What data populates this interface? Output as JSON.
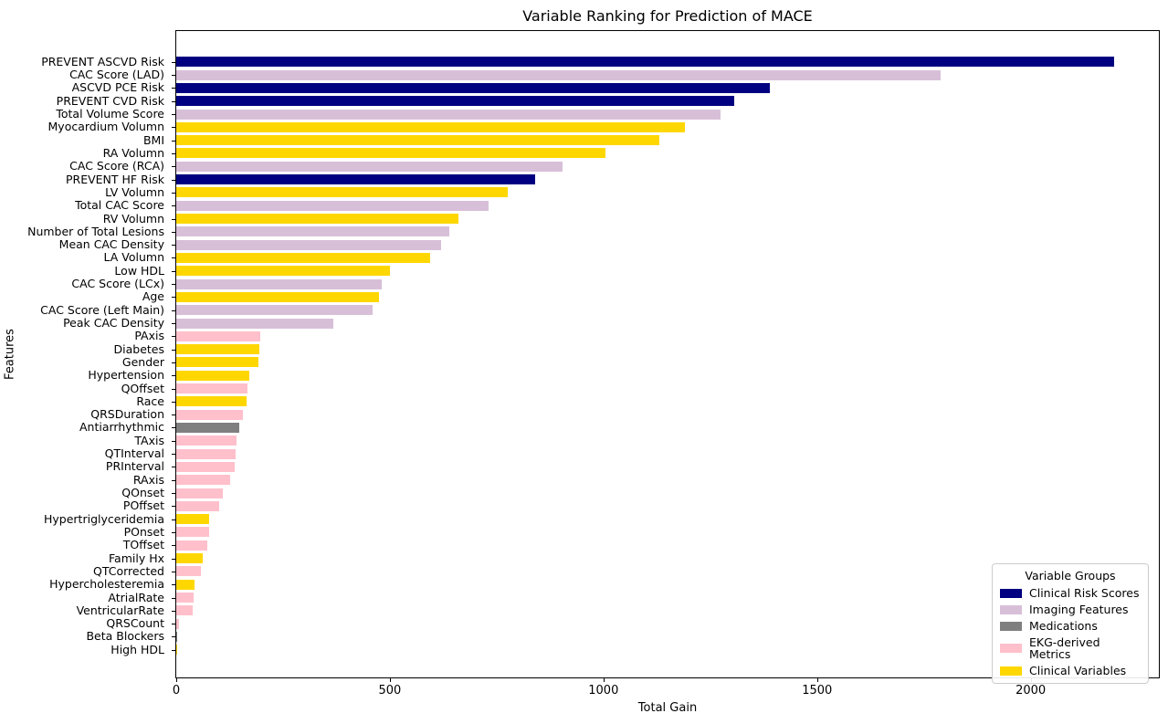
{
  "chart_data": {
    "type": "bar",
    "orientation": "horizontal",
    "title": "Variable Ranking for Prediction of MACE",
    "xlabel": "Total Gain",
    "ylabel": "Features",
    "xlim": [
      0,
      2300
    ],
    "xticks": [
      0,
      500,
      1000,
      1500,
      2000
    ],
    "grid": false,
    "legend": {
      "title": "Variable Groups",
      "position": "lower right",
      "entries": [
        {
          "label": "Clinical Risk Scores",
          "color": "#000080"
        },
        {
          "label": "Imaging Features",
          "color": "#D8BFD8"
        },
        {
          "label": "Medications",
          "color": "#7F7F7F"
        },
        {
          "label": "EKG-derived Metrics",
          "color": "#FFC0CB"
        },
        {
          "label": "Clinical Variables",
          "color": "#FFD700"
        }
      ]
    },
    "bars": [
      {
        "label": "PREVENT ASCVD Risk",
        "value": 2195,
        "group": "Clinical Risk Scores"
      },
      {
        "label": "CAC Score (LAD)",
        "value": 1790,
        "group": "Imaging Features"
      },
      {
        "label": "ASCVD PCE Risk",
        "value": 1390,
        "group": "Clinical Risk Scores"
      },
      {
        "label": "PREVENT CVD Risk",
        "value": 1305,
        "group": "Clinical Risk Scores"
      },
      {
        "label": "Total Volume Score",
        "value": 1275,
        "group": "Imaging Features"
      },
      {
        "label": "Myocardium Volumn",
        "value": 1190,
        "group": "Clinical Variables"
      },
      {
        "label": "BMI",
        "value": 1130,
        "group": "Clinical Variables"
      },
      {
        "label": "RA Volumn",
        "value": 1005,
        "group": "Clinical Variables"
      },
      {
        "label": "CAC Score (RCA)",
        "value": 905,
        "group": "Imaging Features"
      },
      {
        "label": "PREVENT HF Risk",
        "value": 840,
        "group": "Clinical Risk Scores"
      },
      {
        "label": "LV Volumn",
        "value": 775,
        "group": "Clinical Variables"
      },
      {
        "label": "Total CAC Score",
        "value": 730,
        "group": "Imaging Features"
      },
      {
        "label": "RV Volumn",
        "value": 660,
        "group": "Clinical Variables"
      },
      {
        "label": "Number of Total Lesions",
        "value": 640,
        "group": "Imaging Features"
      },
      {
        "label": "Mean CAC Density",
        "value": 620,
        "group": "Imaging Features"
      },
      {
        "label": "LA Volumn",
        "value": 595,
        "group": "Clinical Variables"
      },
      {
        "label": "Low HDL",
        "value": 500,
        "group": "Clinical Variables"
      },
      {
        "label": "CAC Score (LCx)",
        "value": 480,
        "group": "Imaging Features"
      },
      {
        "label": "Age",
        "value": 475,
        "group": "Clinical Variables"
      },
      {
        "label": "CAC Score (Left Main)",
        "value": 460,
        "group": "Imaging Features"
      },
      {
        "label": "Peak CAC Density",
        "value": 367,
        "group": "Imaging Features"
      },
      {
        "label": "PAxis",
        "value": 197,
        "group": "EKG-derived Metrics"
      },
      {
        "label": "Diabetes",
        "value": 195,
        "group": "Clinical Variables"
      },
      {
        "label": "Gender",
        "value": 192,
        "group": "Clinical Variables"
      },
      {
        "label": "Hypertension",
        "value": 171,
        "group": "Clinical Variables"
      },
      {
        "label": "QOffset",
        "value": 167,
        "group": "EKG-derived Metrics"
      },
      {
        "label": "Race",
        "value": 165,
        "group": "Clinical Variables"
      },
      {
        "label": "QRSDuration",
        "value": 156,
        "group": "EKG-derived Metrics"
      },
      {
        "label": "Antiarrhythmic",
        "value": 147,
        "group": "Medications"
      },
      {
        "label": "TAxis",
        "value": 141,
        "group": "EKG-derived Metrics"
      },
      {
        "label": "QTInterval",
        "value": 139,
        "group": "EKG-derived Metrics"
      },
      {
        "label": "PRInterval",
        "value": 137,
        "group": "EKG-derived Metrics"
      },
      {
        "label": "RAxis",
        "value": 126,
        "group": "EKG-derived Metrics"
      },
      {
        "label": "QOnset",
        "value": 109,
        "group": "EKG-derived Metrics"
      },
      {
        "label": "POffset",
        "value": 100,
        "group": "EKG-derived Metrics"
      },
      {
        "label": "Hypertriglyceridemia",
        "value": 78,
        "group": "Clinical Variables"
      },
      {
        "label": "POnset",
        "value": 77,
        "group": "EKG-derived Metrics"
      },
      {
        "label": "TOffset",
        "value": 73,
        "group": "EKG-derived Metrics"
      },
      {
        "label": "Family Hx",
        "value": 62,
        "group": "Clinical Variables"
      },
      {
        "label": "QTCorrected",
        "value": 58,
        "group": "EKG-derived Metrics"
      },
      {
        "label": "Hypercholesteremia",
        "value": 43,
        "group": "Clinical Variables"
      },
      {
        "label": "AtrialRate",
        "value": 41,
        "group": "EKG-derived Metrics"
      },
      {
        "label": "VentricularRate",
        "value": 38,
        "group": "EKG-derived Metrics"
      },
      {
        "label": "QRSCount",
        "value": 6,
        "group": "EKG-derived Metrics"
      },
      {
        "label": "Beta Blockers",
        "value": 2,
        "group": "Medications"
      },
      {
        "label": "High HDL",
        "value": 1,
        "group": "Clinical Variables"
      }
    ]
  }
}
